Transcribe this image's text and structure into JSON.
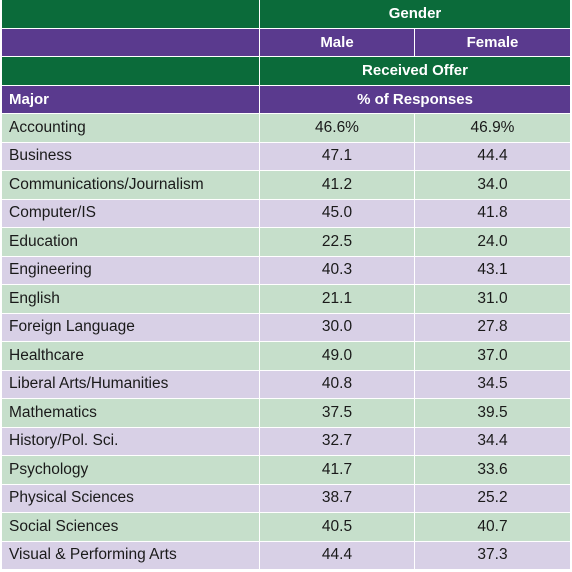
{
  "header": {
    "gender": "Gender",
    "male": "Male",
    "female": "Female",
    "received_offer": "Received Offer",
    "major": "Major",
    "pct_responses": "% of Responses"
  },
  "colors": {
    "header_green": "#0b6b3a",
    "header_purple": "#5a3a8e",
    "row_green": "#c6dfcb",
    "row_purple": "#d8d0e6"
  },
  "rows": [
    {
      "major": "Accounting",
      "male": "46.6%",
      "female": "46.9%"
    },
    {
      "major": "Business",
      "male": "47.1",
      "female": "44.4"
    },
    {
      "major": "Communications/Journalism",
      "male": "41.2",
      "female": "34.0"
    },
    {
      "major": "Computer/IS",
      "male": "45.0",
      "female": "41.8"
    },
    {
      "major": "Education",
      "male": "22.5",
      "female": "24.0"
    },
    {
      "major": "Engineering",
      "male": "40.3",
      "female": "43.1"
    },
    {
      "major": "English",
      "male": "21.1",
      "female": "31.0"
    },
    {
      "major": "Foreign Language",
      "male": "30.0",
      "female": "27.8"
    },
    {
      "major": "Healthcare",
      "male": "49.0",
      "female": "37.0"
    },
    {
      "major": "Liberal Arts/Humanities",
      "male": "40.8",
      "female": "34.5"
    },
    {
      "major": "Mathematics",
      "male": "37.5",
      "female": "39.5"
    },
    {
      "major": "History/Pol. Sci.",
      "male": "32.7",
      "female": "34.4"
    },
    {
      "major": "Psychology",
      "male": "41.7",
      "female": "33.6"
    },
    {
      "major": "Physical Sciences",
      "male": "38.7",
      "female": "25.2"
    },
    {
      "major": "Social Sciences",
      "male": "40.5",
      "female": "40.7"
    },
    {
      "major": "Visual & Performing Arts",
      "male": "44.4",
      "female": "37.3"
    }
  ]
}
